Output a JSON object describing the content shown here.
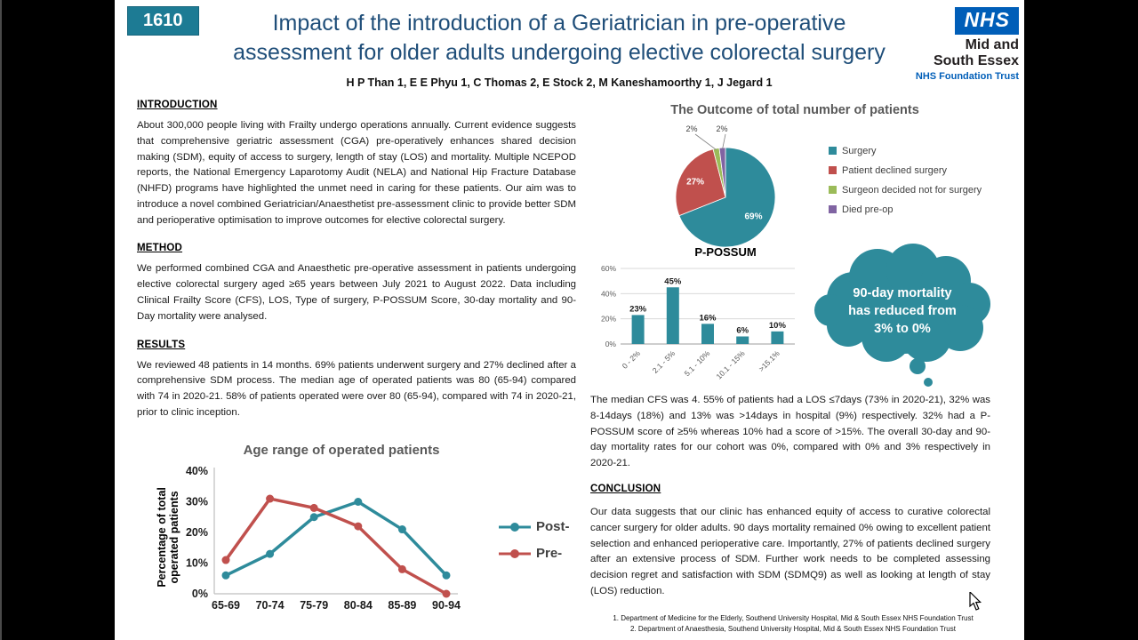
{
  "header": {
    "poster_number": "1610",
    "title_line1": "Impact of the introduction of a Geriatrician in pre-operative",
    "title_line2": "assessment for older adults undergoing elective colorectal surgery",
    "authors": "H P Than 1, E E Phyu 1, C Thomas 2, E Stock 2, M Kaneshamoorthy 1, J Jegard 1",
    "logo": {
      "nhs": "NHS",
      "org": "Mid and\nSouth Essex",
      "trust": "NHS Foundation Trust",
      "blue": "#005EB8"
    }
  },
  "sections": {
    "introduction": {
      "heading": "INTRODUCTION",
      "body": "About 300,000 people living with Frailty undergo operations annually. Current evidence suggests that comprehensive geriatric assessment (CGA) pre-operatively enhances shared decision making (SDM), equity of access to surgery, length of stay (LOS) and mortality. Multiple NCEPOD reports, the National Emergency Laparotomy Audit (NELA) and National Hip Fracture Database (NHFD) programs have highlighted the unmet need in caring for these patients.  Our aim was to introduce a novel combined Geriatrician/Anaesthetist pre-assessment clinic to provide better SDM and perioperative optimisation to improve outcomes for elective colorectal surgery."
    },
    "method": {
      "heading": "METHOD",
      "body": "We performed combined CGA and Anaesthetic pre-operative assessment in patients undergoing elective colorectal surgery aged ≥65 years between July 2021 to August 2022. Data including Clinical Frailty Score (CFS), LOS, Type of surgery, P-POSSUM Score, 30-day mortality and 90-Day mortality were analysed."
    },
    "results": {
      "heading": "RESULTS",
      "body": "We reviewed 48 patients in 14 months. 69% patients underwent surgery and 27% declined after a comprehensive SDM process. The median age of operated patients was 80 (65-94) compared with 74 in 2020-21. 58% of patients operated were over 80 (65-94), compared with 74 in 2020-21, prior to clinic inception."
    },
    "results_continued": "The median CFS was 4.  55% of patients had a LOS ≤7days (73% in 2020-21), 32% was 8-14days (18%) and 13% was >14days in hospital (9%) respectively. 32% had a P-POSSUM score of ≥5% whereas 10% had a score of >15%. The overall 30-day and 90-day mortality rates for our cohort was 0%, compared with 0% and 3% respectively in 2020-21.",
    "conclusion": {
      "heading": "CONCLUSION",
      "body": "Our data suggests that our clinic has enhanced equity of access to curative colorectal cancer surgery for older adults. 90 days mortality remained 0% owing to excellent patient selection and enhanced perioperative care. Importantly, 27% of patients declined surgery after an extensive process of SDM. Further work needs to be completed assessing decision regret and satisfaction with SDM (SDMQ9) as well as looking at length of stay (LOS) reduction."
    }
  },
  "cloud_callout": {
    "line1": "90-day mortality",
    "line2": "has reduced from",
    "line3": "3% to 0%",
    "color": "#2E8B9B"
  },
  "footnotes": [
    "1. Department of Medicine for the Elderly, Southend University Hospital, Mid & South Essex NHS Foundation Trust",
    "2. Department of Anaesthesia, Southend University Hospital, Mid & South Essex NHS Foundation Trust"
  ],
  "chart_data": [
    {
      "type": "pie",
      "title": "The Outcome of total number of patients",
      "legend_position": "right",
      "slices": [
        {
          "label": "Surgery",
          "value": 69,
          "display": "69%",
          "color": "#2E8B9B"
        },
        {
          "label": "Patient declined surgery",
          "value": 27,
          "display": "27%",
          "color": "#C0504D"
        },
        {
          "label": "Surgeon decided not for surgery",
          "value": 2,
          "display": "2%",
          "color": "#9BBB59"
        },
        {
          "label": "Died pre-op",
          "value": 2,
          "display": "2%",
          "color": "#8064A2"
        }
      ]
    },
    {
      "type": "bar",
      "title": "P-POSSUM",
      "categories": [
        "0 - 2%",
        "2.1 - 5%",
        "5.1 - 10%",
        "10.1 - 15%",
        ">15.1%"
      ],
      "values": [
        23,
        45,
        16,
        6,
        10
      ],
      "value_labels": [
        "23%",
        "45%",
        "16%",
        "6%",
        "10%"
      ],
      "ylim": [
        0,
        60
      ],
      "yticks": [
        "0%",
        "20%",
        "40%",
        "60%"
      ],
      "bar_color": "#2E8B9B",
      "grid": true
    },
    {
      "type": "line",
      "title": "Age range of operated patients",
      "ylabel": "Percentage of total\noperated patients",
      "categories": [
        "65-69",
        "70-74",
        "75-79",
        "80-84",
        "85-89",
        "90-94"
      ],
      "ylim": [
        0,
        40
      ],
      "yticks": [
        "0%",
        "10%",
        "20%",
        "30%",
        "40%"
      ],
      "legend_position": "right",
      "grid": false,
      "series": [
        {
          "name": "Post-",
          "color": "#2E8B9B",
          "values": [
            6,
            13,
            25,
            30,
            21,
            6
          ]
        },
        {
          "name": "Pre-",
          "color": "#C0504D",
          "values": [
            11,
            31,
            28,
            22,
            8,
            0
          ]
        }
      ]
    }
  ]
}
